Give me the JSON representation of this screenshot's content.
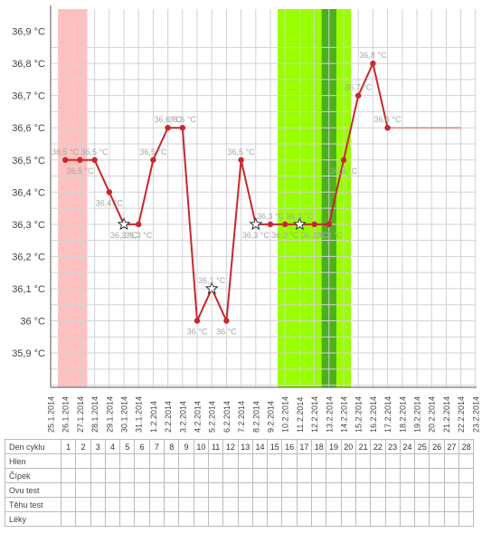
{
  "chart_data": {
    "type": "line",
    "x": [
      "25.1.2014",
      "26.1.2014",
      "27.1.2014",
      "28.1.2014",
      "29.1.2014",
      "30.1.2014",
      "31.1.2014",
      "1.2.2014",
      "2.2.2014",
      "3.2.2014",
      "4.2.2014",
      "5.2.2014",
      "6.2.2014",
      "7.2.2014",
      "8.2.2014",
      "9.2.2014",
      "10.2.2014",
      "11.2.2014",
      "12.2.2014",
      "13.2.2014",
      "14.2.2014",
      "15.2.2014",
      "16.2.2014",
      "17.2.2014",
      "18.2.2014",
      "19.2.2014",
      "20.2.2014",
      "21.2.2014",
      "22.2.2014",
      "23.2.2014"
    ],
    "yticks": [
      "36,9 °C",
      "36,8 °C",
      "36,7 °C",
      "36,6 °C",
      "36,5 °C",
      "36,4 °C",
      "36,3 °C",
      "36,2 °C",
      "36,1 °C",
      "36 °C",
      "35,9 °C"
    ],
    "ylim": [
      35.8,
      36.95
    ],
    "series": [
      {
        "values": [
          null,
          36.5,
          36.5,
          36.5,
          36.4,
          36.3,
          36.3,
          36.5,
          36.6,
          36.6,
          36.0,
          36.1,
          36.0,
          36.5,
          36.3,
          36.3,
          36.3,
          36.3,
          36.3,
          36.3,
          36.5,
          36.7,
          36.8,
          36.6,
          null,
          null,
          null,
          null,
          null,
          null
        ],
        "labels": [
          null,
          "36,5 °C",
          "36,5 °C",
          "36,5 °C",
          "36,4 °C",
          "36,3 °C",
          "36,3 °C",
          "36,5 °C",
          "36,6 °C",
          "36,6 °C",
          "36 °C",
          "36,1 °C",
          "36 °C",
          "36,5 °C",
          "36,3 °C",
          "36,3 °C",
          "36,3 °C",
          "36,3 °C",
          "36,3 °C",
          "36,3 °C",
          "36,5 °C",
          "36,7 °C",
          "36,8 °C",
          "36,6 °C",
          null,
          null,
          null,
          null,
          null,
          null
        ],
        "star_points": [
          5,
          11,
          14,
          17
        ],
        "color": "#c8282d"
      }
    ],
    "coverline": {
      "value": 36.6,
      "from_index": 23,
      "to_index": 28,
      "color": "#e08080"
    },
    "bands": [
      {
        "from_index": 0.5,
        "to_index": 2.5,
        "color": "#ffc0c0"
      },
      {
        "from_index": 15.5,
        "to_index": 20.5,
        "color": "#99ff00"
      },
      {
        "from_index": 18.5,
        "to_index": 19.5,
        "color": "#4caf1e"
      }
    ],
    "grid": true
  },
  "table": {
    "header_label": "Den cyklu",
    "days": [
      "1",
      "2",
      "3",
      "4",
      "5",
      "6",
      "7",
      "8",
      "9",
      "10",
      "11",
      "12",
      "13",
      "14",
      "15",
      "16",
      "17",
      "18",
      "19",
      "20",
      "21",
      "22",
      "23",
      "24",
      "25",
      "26",
      "27",
      "28"
    ],
    "rows": [
      "Hlen",
      "Čípek",
      "Ovu test",
      "Těhu test",
      "Léky"
    ]
  }
}
